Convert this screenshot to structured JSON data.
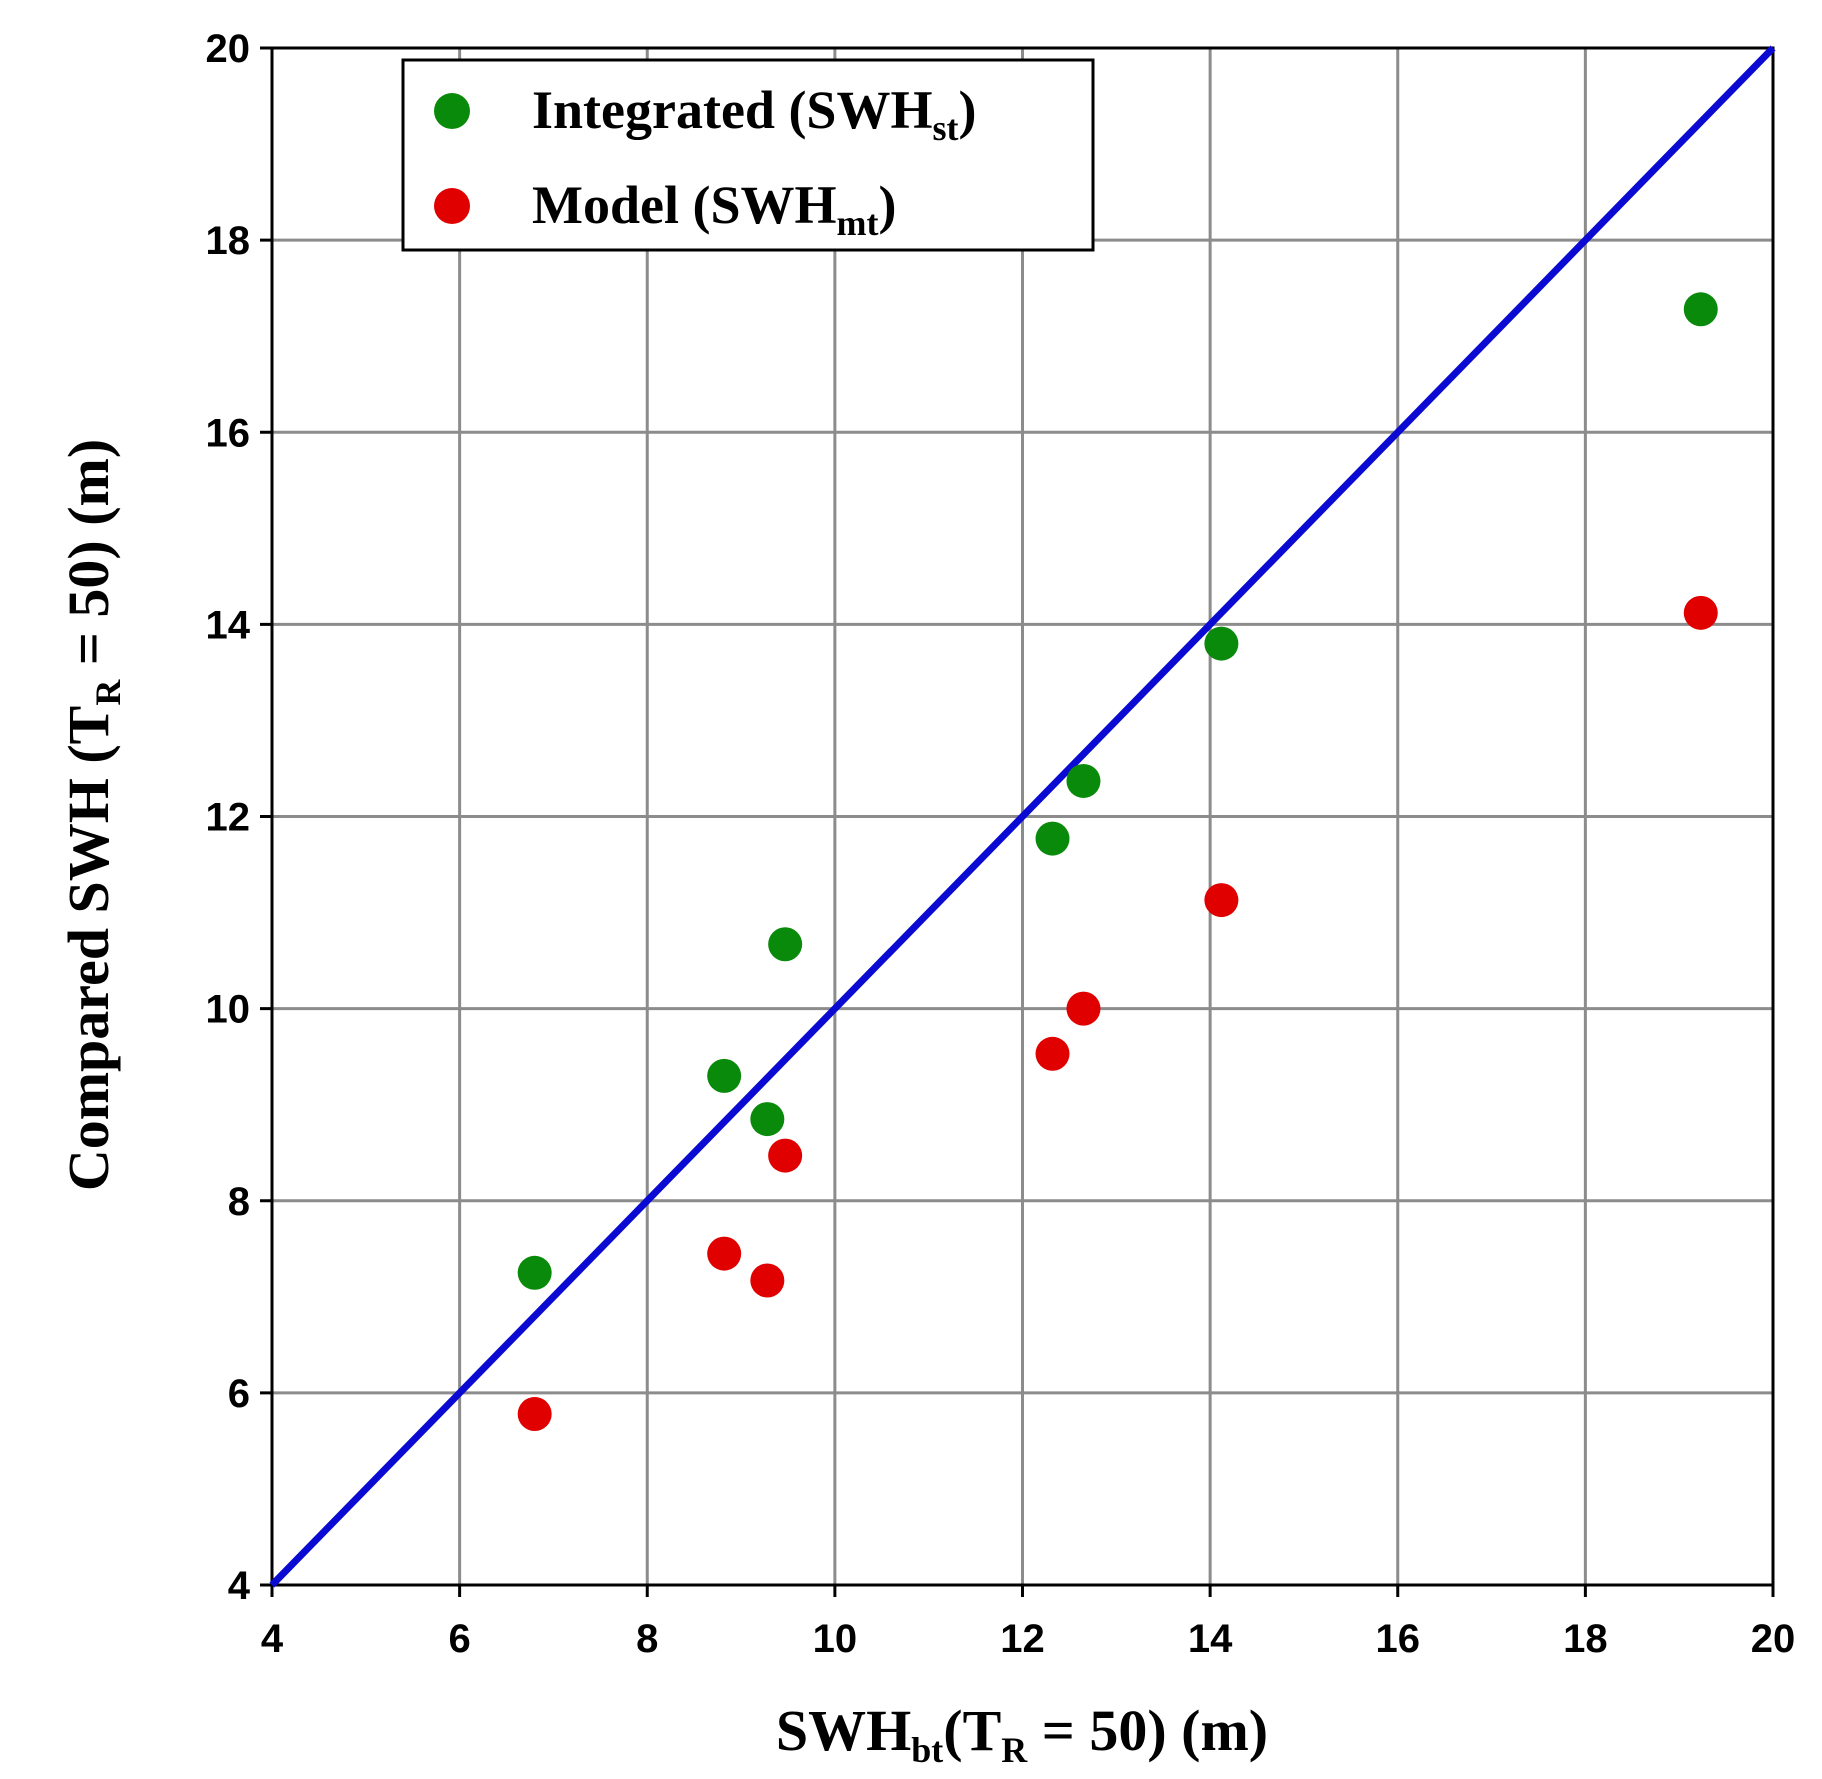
{
  "chart_data": {
    "type": "scatter",
    "x_axis": {
      "label_main": "SWH",
      "label_sub": "bt",
      "label_paren_open": "(T",
      "label_paren_sub": "R",
      "label_rest": " = 50)   (m)",
      "range": [
        4,
        20
      ],
      "ticks": [
        4,
        6,
        8,
        10,
        12,
        14,
        16,
        18,
        20
      ]
    },
    "y_axis": {
      "label_main": "Compared SWH (T",
      "label_sub": "R",
      "label_rest": " = 50)   (m)",
      "range": [
        4,
        20
      ],
      "ticks": [
        4,
        6,
        8,
        10,
        12,
        14,
        16,
        18,
        20
      ]
    },
    "grid": true,
    "reference_line": {
      "name": "1:1 line",
      "from": [
        4,
        4
      ],
      "to": [
        20,
        20
      ],
      "color": "#0a0ad2"
    },
    "series": [
      {
        "name": "Integrated (SWH",
        "name_sub": "st",
        "name_close": ")",
        "color": "#0a8a0a",
        "points": [
          [
            6.8,
            7.25
          ],
          [
            8.82,
            9.3
          ],
          [
            9.28,
            8.85
          ],
          [
            9.47,
            10.67
          ],
          [
            12.32,
            11.77
          ],
          [
            12.65,
            12.37
          ],
          [
            14.12,
            13.8
          ],
          [
            19.23,
            17.28
          ]
        ]
      },
      {
        "name": "Model (SWH",
        "name_sub": "mt",
        "name_close": ")",
        "color": "#e00000",
        "points": [
          [
            6.8,
            5.78
          ],
          [
            8.82,
            7.45
          ],
          [
            9.28,
            7.17
          ],
          [
            9.47,
            8.47
          ],
          [
            12.32,
            9.53
          ],
          [
            12.65,
            10.0
          ],
          [
            14.12,
            11.13
          ],
          [
            19.23,
            14.12
          ]
        ]
      }
    ],
    "legend_position": "top-left"
  }
}
